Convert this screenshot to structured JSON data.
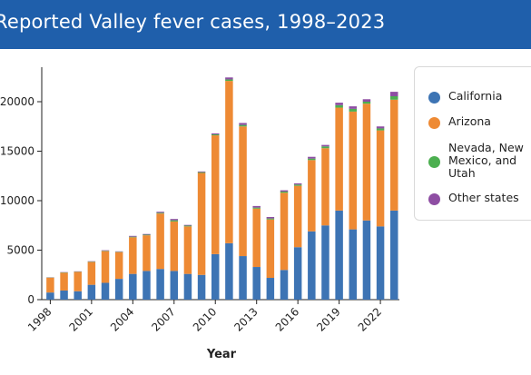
{
  "header": {
    "title": "Reported Valley fever cases, 1998–2023"
  },
  "colors": {
    "header_bg": "#1f5fab",
    "california": "#3d74b4",
    "arizona": "#ee8a34",
    "nevada_nm_ut": "#4caf50",
    "other": "#8e4ea3"
  },
  "chart_data": {
    "type": "bar",
    "stacked": true,
    "title": "Reported Valley fever cases, 1998–2023",
    "xlabel": "Year",
    "ylabel": "",
    "ylim": [
      0,
      22500
    ],
    "yticks": [
      0,
      5000,
      10000,
      15000,
      20000
    ],
    "ytick_labels": [
      "0",
      "5000",
      "10000",
      "15000",
      "20000"
    ],
    "xtick_labels": [
      "1998",
      "2001",
      "2004",
      "2007",
      "2010",
      "2013",
      "2016",
      "2019",
      "2022"
    ],
    "categories": [
      "1998",
      "1999",
      "2000",
      "2001",
      "2002",
      "2003",
      "2004",
      "2005",
      "2006",
      "2007",
      "2008",
      "2009",
      "2010",
      "2011",
      "2012",
      "2013",
      "2014",
      "2015",
      "2016",
      "2017",
      "2018",
      "2019",
      "2020",
      "2021",
      "2022",
      "2023"
    ],
    "series": [
      {
        "name": "California",
        "color": "#3d74b4",
        "values": [
          720,
          920,
          850,
          1500,
          1700,
          2100,
          2600,
          2900,
          3100,
          2900,
          2600,
          2500,
          4600,
          5700,
          4400,
          3300,
          2200,
          3000,
          5300,
          6900,
          7500,
          9000,
          7100,
          8000,
          7400,
          9000
        ]
      },
      {
        "name": "Arizona",
        "color": "#ee8a34",
        "values": [
          1500,
          1800,
          1950,
          2300,
          3200,
          2700,
          3700,
          3600,
          5600,
          5000,
          4800,
          10300,
          12000,
          16400,
          13100,
          5900,
          5900,
          7800,
          6200,
          7200,
          7800,
          10400,
          11900,
          11800,
          9700,
          11200
        ]
      },
      {
        "name": "Nevada, New Mexico, and Utah",
        "color": "#4caf50",
        "values": [
          20,
          30,
          30,
          40,
          40,
          40,
          60,
          60,
          80,
          120,
          80,
          80,
          100,
          150,
          150,
          100,
          100,
          120,
          130,
          150,
          180,
          250,
          280,
          200,
          200,
          350
        ]
      },
      {
        "name": "Other states",
        "color": "#8e4ea3",
        "values": [
          20,
          30,
          30,
          40,
          50,
          40,
          80,
          70,
          100,
          130,
          70,
          70,
          100,
          200,
          200,
          160,
          150,
          130,
          120,
          180,
          150,
          250,
          250,
          250,
          200,
          450
        ]
      }
    ],
    "legend_position": "right"
  },
  "legend": {
    "items": [
      {
        "label": "California",
        "color": "#3d74b4"
      },
      {
        "label": "Arizona",
        "color": "#ee8a34"
      },
      {
        "label": "Nevada, New Mexico, and Utah",
        "color": "#4caf50"
      },
      {
        "label": "Other states",
        "color": "#8e4ea3"
      }
    ]
  }
}
